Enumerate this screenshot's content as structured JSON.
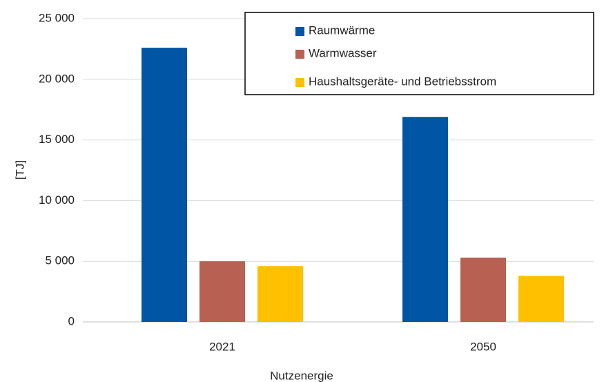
{
  "chart_data": {
    "type": "bar",
    "categories": [
      "2021",
      "2050"
    ],
    "series": [
      {
        "name": "Raumwärme",
        "color": "#0055a5",
        "values": [
          22600,
          16900
        ]
      },
      {
        "name": "Warmwasser",
        "color": "#b86152",
        "values": [
          5000,
          5300
        ]
      },
      {
        "name": "Haushaltsgeräte- und Betriebsstrom",
        "color": "#ffc000",
        "values": [
          4600,
          3800
        ]
      }
    ],
    "ylabel": "[TJ]",
    "xlabel": "Nutzenergie",
    "ylim": [
      0,
      25000
    ],
    "yticks": [
      0,
      {
        "value": 5000,
        "label": "5 000"
      },
      {
        "value": 10000,
        "label": "10 000"
      },
      {
        "value": 15000,
        "label": "15 000"
      },
      {
        "value": 20000,
        "label": "20 000"
      },
      {
        "value": 25000,
        "label": "25 000"
      }
    ],
    "grid": true,
    "legend": "upper right"
  }
}
